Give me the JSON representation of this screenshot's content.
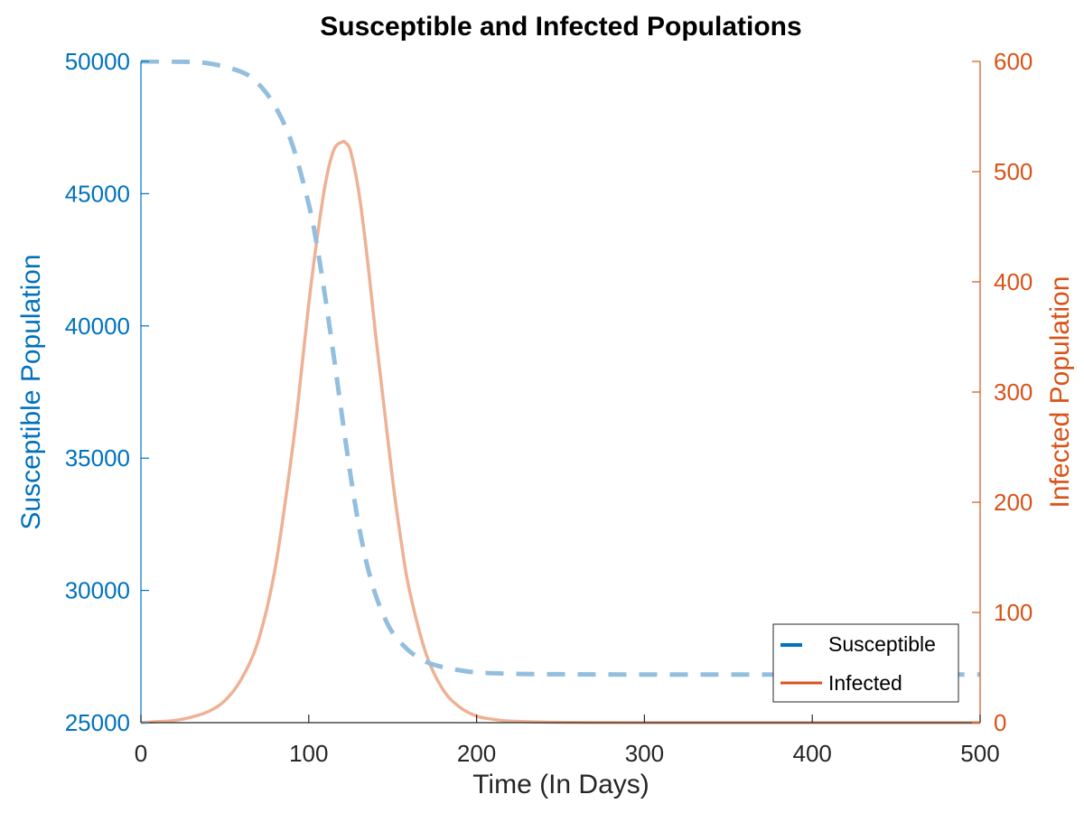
{
  "chart_data": {
    "type": "line",
    "title": "Susceptible and Infected Populations",
    "xlabel": "Time (In Days)",
    "ylabel_left": "Susceptible Population",
    "ylabel_right": "Infected Population",
    "xlim": [
      0,
      500
    ],
    "ylim_left": [
      25000,
      50000
    ],
    "ylim_right": [
      0,
      600
    ],
    "xticks": [
      0,
      100,
      200,
      300,
      400,
      500
    ],
    "yticks_left": [
      25000,
      30000,
      35000,
      40000,
      45000,
      50000
    ],
    "yticks_right": [
      0,
      100,
      200,
      300,
      400,
      500,
      600
    ],
    "grid": false,
    "legend_position": "bottom-right",
    "colors": {
      "left_axis": "#0072BD",
      "right_axis": "#D95319",
      "susceptible_line": "#93BFDE",
      "infected_line": "#EEB195",
      "axis_black": "#262626"
    },
    "series": [
      {
        "name": "Susceptible",
        "axis": "left",
        "style": "dashed",
        "x": [
          0,
          20,
          40,
          60,
          70,
          80,
          90,
          100,
          105,
          110,
          115,
          120,
          125,
          130,
          135,
          140,
          145,
          150,
          160,
          170,
          180,
          190,
          200,
          220,
          250,
          300,
          400,
          500
        ],
        "y": [
          50000,
          49990,
          49930,
          49600,
          49150,
          48300,
          46900,
          44600,
          43000,
          41000,
          38800,
          36500,
          34300,
          32400,
          30900,
          29800,
          29000,
          28400,
          27700,
          27300,
          27100,
          26980,
          26900,
          26850,
          26830,
          26820,
          26820,
          26820
        ]
      },
      {
        "name": "Infected",
        "axis": "right",
        "style": "solid",
        "x": [
          0,
          10,
          20,
          30,
          40,
          50,
          60,
          70,
          80,
          90,
          95,
          100,
          105,
          110,
          115,
          120,
          122,
          125,
          130,
          135,
          140,
          145,
          150,
          155,
          160,
          170,
          180,
          190,
          200,
          210,
          220,
          240,
          260,
          300,
          400,
          500
        ],
        "y": [
          0,
          1,
          2,
          5,
          10,
          20,
          40,
          75,
          140,
          245,
          310,
          380,
          440,
          490,
          520,
          527,
          526,
          518,
          480,
          420,
          350,
          285,
          220,
          165,
          120,
          62,
          30,
          14,
          6,
          3,
          1.5,
          0.5,
          0.2,
          0,
          0,
          0
        ]
      }
    ]
  }
}
